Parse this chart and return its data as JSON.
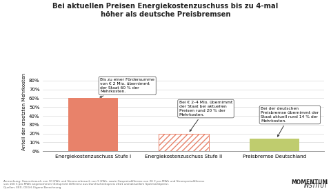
{
  "title": "Bei aktuellen Preisen Energiekostenzuschuss bis zu 4-mal\nhöher als deutsche Preisbremsen",
  "categories": [
    "Energiekostenzuschuss Stufe I",
    "Energiekostenzuschuss Stufe II",
    "Preisbremse Deutschland"
  ],
  "values": [
    60,
    20,
    14
  ],
  "bar_colors": [
    "#E8826A",
    "#E8826A",
    "#BFCC6E"
  ],
  "bar_hatches": [
    null,
    "////",
    null
  ],
  "ylabel": "Anteil der ersetzten Mehrkosten",
  "ylim": [
    0,
    90
  ],
  "yticks": [
    0,
    10,
    20,
    30,
    40,
    50,
    60,
    70,
    80
  ],
  "ytick_labels": [
    "0%",
    "10%",
    "20%",
    "30%",
    "40%",
    "50%",
    "60%",
    "70%",
    "80%"
  ],
  "ann0_text": "Bis zu einer Fördersumme\nvon € 2 Mio. übernimmt\nder Staat 60 % der\nMehrkosten.",
  "ann1_text": "Bei € 2–4 Mio. übernimmt\nder Staat bei aktuellen\nPreisen rund 20 % der\nMehrkosten.",
  "ann2_text": "Bei der deutschen\nPreisbremse übernimmt der\nStaat aktuell rund 14 % der\nMehrkosten.",
  "footer_text": "Anmerkung: Gasverbrauch von 10 GWh und Stromverbrauch von 5 GWh, sowie Gaspreisdifferenz von 26 € pro MWh und Strompreisdifferenz\nvon 100 € pro MWh angenommen (Entspricht Differenz aus Durchschnittspreis 2021 und aktuellem Spotmarktpreis).\nQuellen: EEX, CEGH, Eigene Berechnung",
  "logo_line1": "MOMENTUM",
  "logo_line2": "INSTITUT",
  "background_color": "#FFFFFF"
}
